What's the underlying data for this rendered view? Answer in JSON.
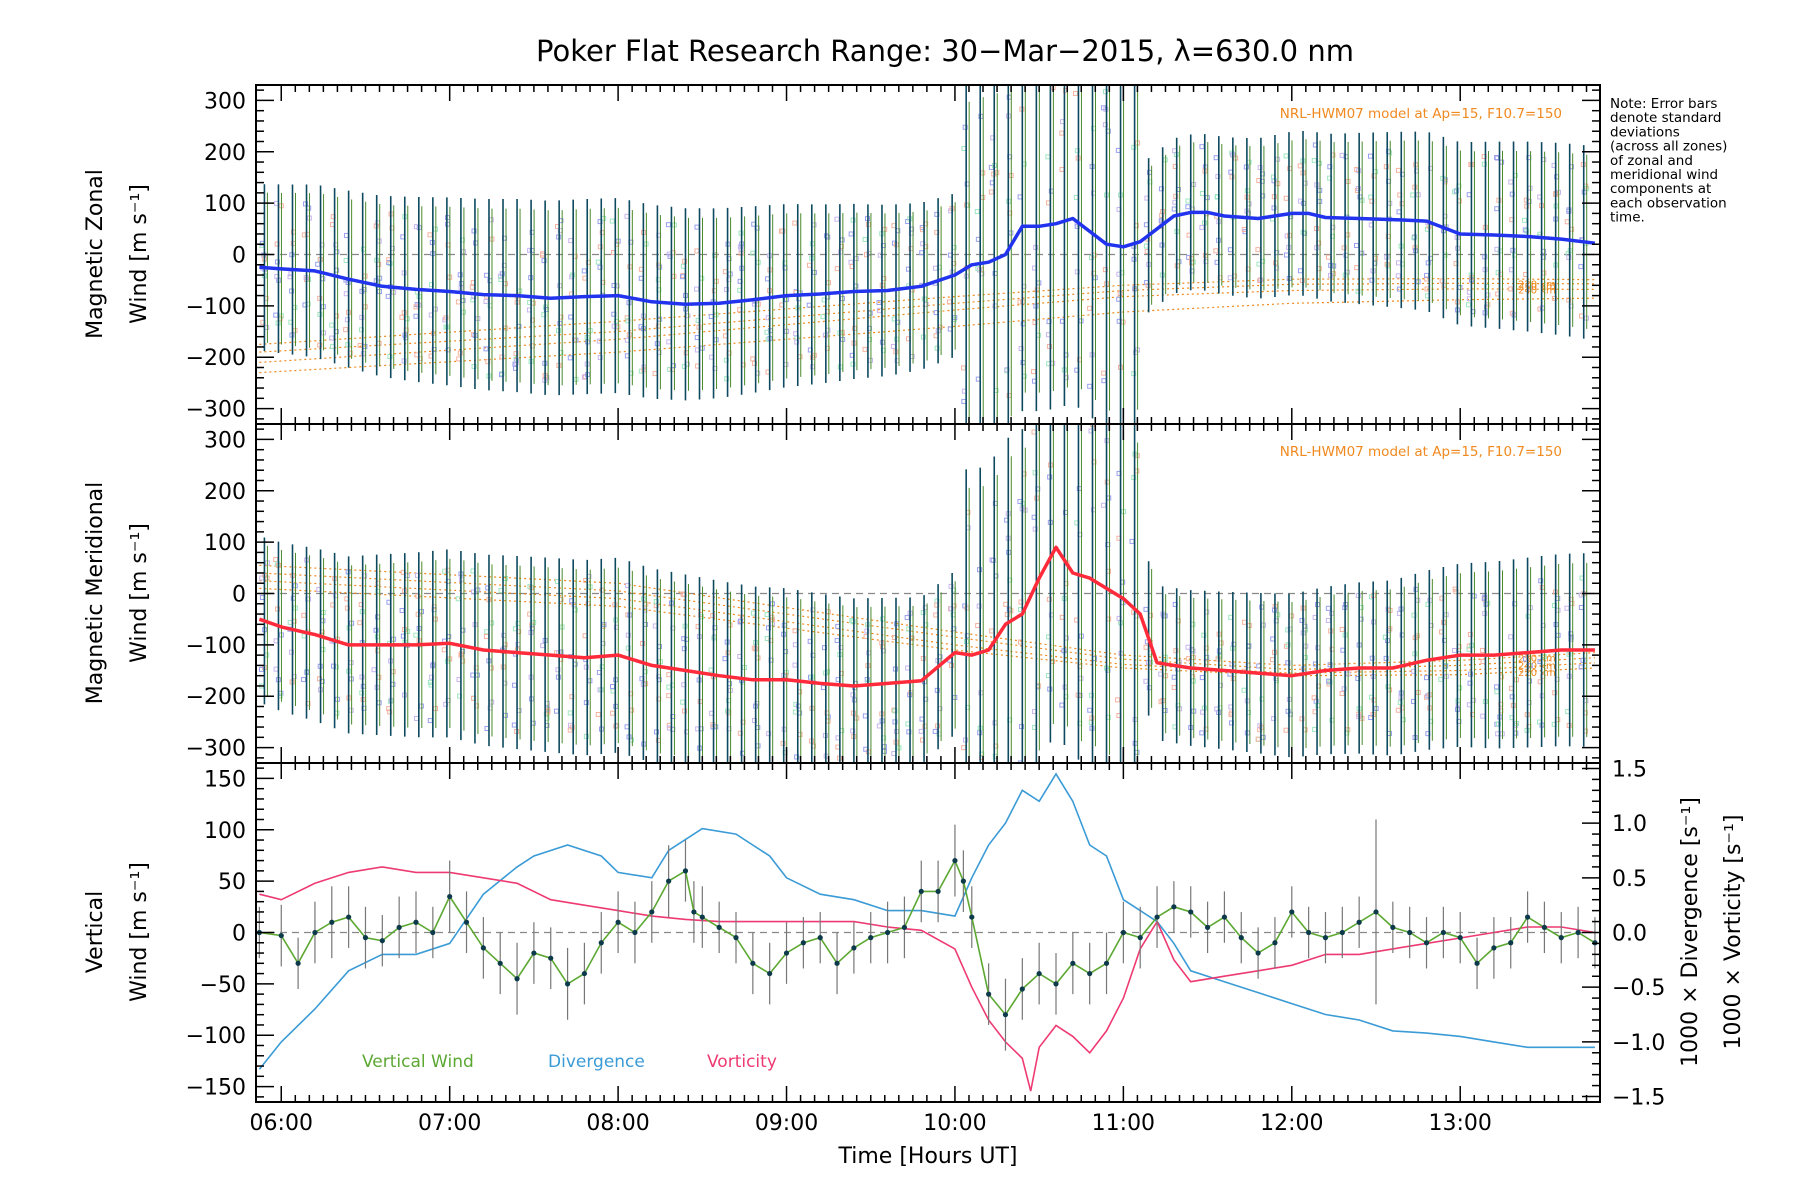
{
  "title": "Poker Flat Research Range: 30−Mar−2015, λ=630.0 nm",
  "note": [
    "Note: Error bars",
    "denote standard",
    "deviations",
    "(across all zones)",
    "of zonal and",
    "meridional wind",
    "components at",
    "each observation",
    "time."
  ],
  "colors": {
    "zonal": "#2233ee",
    "meridional": "#ff2a3a",
    "vertical": "#5ca832",
    "divergence": "#3a9bd6",
    "vorticity": "#ee3a72",
    "model": "#f08a20",
    "errorbar_dark": "#0d4a60",
    "errorbar_green": "#4a8a2a",
    "zero_line": "#888888"
  },
  "chart_data": [
    {
      "type": "line",
      "id": "zonal",
      "ylabel_line1": "Magnetic Zonal",
      "ylabel_line2": "Wind [m s⁻¹]",
      "ylim": [
        -330,
        330
      ],
      "yticks": [
        -300,
        -200,
        -100,
        0,
        100,
        200,
        300
      ],
      "model_label": "NRL-HWM07 model at Ap=15, F10.7=150",
      "model_alt_labels": [
        "240 km",
        "250 km",
        "220 km"
      ],
      "model_lines": [
        {
          "x": [
            5.87,
            8.0,
            10.0,
            11.0,
            12.0,
            13.0,
            13.8
          ],
          "y": [
            -230,
            -190,
            -140,
            -112,
            -95,
            -88,
            -85
          ]
        },
        {
          "x": [
            5.87,
            8.0,
            10.0,
            11.0,
            12.0,
            13.0,
            13.8
          ],
          "y": [
            -210,
            -165,
            -108,
            -82,
            -70,
            -67,
            -68
          ]
        },
        {
          "x": [
            5.87,
            8.0,
            10.0,
            11.0,
            12.0,
            13.0,
            13.8
          ],
          "y": [
            -190,
            -150,
            -95,
            -70,
            -58,
            -56,
            -57
          ]
        },
        {
          "x": [
            5.87,
            8.0,
            10.0,
            11.0,
            12.0,
            13.0,
            13.8
          ],
          "y": [
            -175,
            -130,
            -82,
            -60,
            -48,
            -47,
            -49
          ]
        }
      ],
      "series": [
        {
          "x": [
            5.87,
            6.0,
            6.2,
            6.4,
            6.6,
            6.8,
            7.0,
            7.2,
            7.4,
            7.6,
            7.8,
            8.0,
            8.2,
            8.4,
            8.6,
            8.8,
            9.0,
            9.2,
            9.4,
            9.6,
            9.8,
            10.0,
            10.1,
            10.2,
            10.3,
            10.4,
            10.5,
            10.6,
            10.7,
            10.8,
            10.9,
            11.0,
            11.1,
            11.2,
            11.3,
            11.4,
            11.5,
            11.6,
            11.8,
            12.0,
            12.1,
            12.2,
            12.4,
            12.6,
            12.8,
            13.0,
            13.2,
            13.4,
            13.6,
            13.8
          ],
          "y": [
            -25,
            -28,
            -32,
            -48,
            -62,
            -68,
            -72,
            -78,
            -80,
            -85,
            -82,
            -80,
            -92,
            -97,
            -95,
            -88,
            -80,
            -77,
            -72,
            -70,
            -62,
            -40,
            -20,
            -15,
            0,
            55,
            55,
            60,
            70,
            45,
            20,
            15,
            25,
            50,
            75,
            82,
            82,
            75,
            70,
            80,
            80,
            72,
            70,
            68,
            65,
            40,
            38,
            35,
            30,
            22
          ]
        }
      ]
    },
    {
      "type": "line",
      "id": "meridional",
      "ylabel_line1": "Magnetic Meridional",
      "ylabel_line2": "Wind [m s⁻¹]",
      "ylim": [
        -330,
        330
      ],
      "yticks": [
        -300,
        -200,
        -100,
        0,
        100,
        200,
        300
      ],
      "model_label": "NRL-HWM07 model at Ap=15, F10.7=150",
      "model_alt_labels": [
        "250 km",
        "240 km",
        "220 km"
      ],
      "model_lines": [
        {
          "x": [
            5.87,
            8.0,
            10.0,
            11.0,
            12.0,
            13.0,
            13.8
          ],
          "y": [
            55,
            20,
            -75,
            -120,
            -140,
            -130,
            -115
          ]
        },
        {
          "x": [
            5.87,
            8.0,
            10.0,
            11.0,
            12.0,
            13.0,
            13.8
          ],
          "y": [
            40,
            5,
            -85,
            -128,
            -148,
            -140,
            -125
          ]
        },
        {
          "x": [
            5.87,
            8.0,
            10.0,
            11.0,
            12.0,
            13.0,
            13.8
          ],
          "y": [
            25,
            -10,
            -100,
            -138,
            -155,
            -150,
            -135
          ]
        },
        {
          "x": [
            5.87,
            8.0,
            10.0,
            11.0,
            12.0,
            13.0,
            13.8
          ],
          "y": [
            10,
            -25,
            -110,
            -145,
            -160,
            -158,
            -145
          ]
        }
      ],
      "series": [
        {
          "x": [
            5.87,
            6.0,
            6.2,
            6.4,
            6.6,
            6.8,
            7.0,
            7.2,
            7.4,
            7.6,
            7.8,
            8.0,
            8.2,
            8.4,
            8.6,
            8.8,
            9.0,
            9.2,
            9.4,
            9.6,
            9.8,
            10.0,
            10.1,
            10.2,
            10.3,
            10.4,
            10.5,
            10.55,
            10.6,
            10.7,
            10.8,
            10.9,
            11.0,
            11.1,
            11.2,
            11.4,
            11.6,
            11.8,
            12.0,
            12.2,
            12.4,
            12.6,
            12.8,
            13.0,
            13.2,
            13.4,
            13.6,
            13.8
          ],
          "y": [
            -50,
            -65,
            -80,
            -100,
            -100,
            -100,
            -97,
            -110,
            -115,
            -120,
            -125,
            -120,
            -140,
            -150,
            -160,
            -168,
            -168,
            -175,
            -180,
            -175,
            -170,
            -115,
            -120,
            -110,
            -60,
            -40,
            30,
            60,
            90,
            40,
            30,
            10,
            -10,
            -40,
            -135,
            -145,
            -150,
            -155,
            -160,
            -150,
            -145,
            -145,
            -130,
            -120,
            -120,
            -115,
            -110,
            -110
          ]
        }
      ]
    },
    {
      "type": "line",
      "id": "vertical",
      "ylabel_line1": "Vertical",
      "ylabel_line2": "Wind [m s⁻¹]",
      "ylim": [
        -165,
        165
      ],
      "yticks": [
        -150,
        -100,
        -50,
        0,
        50,
        100,
        150
      ],
      "y2label": "1000 × Divergence [s⁻¹]",
      "y3label": "1000 × Vorticity [s⁻¹]",
      "y2lim": [
        -1.55,
        1.55
      ],
      "y2ticks": [
        -1.5,
        -1.0,
        -0.5,
        0.0,
        0.5,
        1.0,
        1.5
      ],
      "xlabel": "Time [Hours UT]",
      "xlim": [
        5.85,
        13.83
      ],
      "xticks": [
        6,
        7,
        8,
        9,
        10,
        11,
        12,
        13
      ],
      "xticklabels": [
        "06:00",
        "07:00",
        "08:00",
        "09:00",
        "10:00",
        "11:00",
        "12:00",
        "13:00"
      ],
      "legend": [
        "Vertical Wind",
        "Divergence",
        "Vorticity"
      ],
      "series": [
        {
          "name": "Vertical Wind",
          "x": [
            5.87,
            6.0,
            6.1,
            6.2,
            6.3,
            6.4,
            6.5,
            6.6,
            6.7,
            6.8,
            6.9,
            7.0,
            7.1,
            7.2,
            7.3,
            7.4,
            7.5,
            7.6,
            7.7,
            7.8,
            7.9,
            8.0,
            8.1,
            8.2,
            8.3,
            8.4,
            8.45,
            8.5,
            8.6,
            8.7,
            8.8,
            8.9,
            9.0,
            9.1,
            9.2,
            9.3,
            9.4,
            9.5,
            9.6,
            9.7,
            9.8,
            9.9,
            10.0,
            10.05,
            10.1,
            10.2,
            10.3,
            10.4,
            10.5,
            10.6,
            10.7,
            10.8,
            10.9,
            11.0,
            11.1,
            11.2,
            11.3,
            11.4,
            11.5,
            11.6,
            11.7,
            11.8,
            11.9,
            12.0,
            12.1,
            12.2,
            12.3,
            12.4,
            12.5,
            12.6,
            12.7,
            12.8,
            12.9,
            13.0,
            13.1,
            13.2,
            13.3,
            13.4,
            13.5,
            13.6,
            13.7,
            13.8
          ],
          "y": [
            0,
            -3,
            -30,
            0,
            10,
            15,
            -5,
            -8,
            5,
            10,
            0,
            35,
            10,
            -15,
            -30,
            -45,
            -20,
            -25,
            -50,
            -40,
            -10,
            10,
            0,
            20,
            50,
            60,
            20,
            15,
            5,
            -5,
            -30,
            -40,
            -20,
            -10,
            -5,
            -30,
            -15,
            -5,
            0,
            5,
            40,
            40,
            70,
            50,
            15,
            -60,
            -80,
            -55,
            -40,
            -50,
            -30,
            -40,
            -30,
            0,
            -5,
            15,
            25,
            20,
            5,
            15,
            -5,
            -20,
            -10,
            20,
            0,
            -5,
            0,
            10,
            20,
            5,
            0,
            -10,
            0,
            -5,
            -30,
            -15,
            -10,
            15,
            5,
            -5,
            0,
            -10
          ],
          "err": [
            25,
            30,
            25,
            30,
            35,
            30,
            30,
            25,
            30,
            30,
            25,
            35,
            30,
            30,
            30,
            35,
            30,
            30,
            35,
            30,
            30,
            30,
            30,
            30,
            35,
            30,
            30,
            30,
            25,
            25,
            30,
            30,
            30,
            25,
            25,
            30,
            25,
            25,
            30,
            30,
            30,
            30,
            35,
            30,
            30,
            30,
            35,
            30,
            30,
            30,
            30,
            30,
            30,
            30,
            30,
            30,
            25,
            25,
            25,
            25,
            25,
            25,
            25,
            25,
            25,
            25,
            25,
            25,
            90,
            25,
            25,
            25,
            25,
            25,
            25,
            30,
            25,
            25,
            25,
            25,
            25,
            25
          ]
        },
        {
          "name": "Divergence",
          "axis": "y2",
          "x": [
            5.87,
            6.0,
            6.2,
            6.4,
            6.6,
            6.8,
            7.0,
            7.2,
            7.4,
            7.5,
            7.7,
            7.9,
            8.0,
            8.2,
            8.3,
            8.5,
            8.7,
            8.9,
            9.0,
            9.2,
            9.4,
            9.6,
            9.8,
            10.0,
            10.1,
            10.2,
            10.3,
            10.4,
            10.5,
            10.6,
            10.7,
            10.8,
            10.9,
            11.0,
            11.1,
            11.2,
            11.3,
            11.4,
            11.6,
            11.8,
            12.0,
            12.2,
            12.4,
            12.6,
            12.8,
            13.0,
            13.2,
            13.4,
            13.6,
            13.8
          ],
          "y": [
            -1.25,
            -1.0,
            -0.7,
            -0.35,
            -0.2,
            -0.2,
            -0.1,
            0.35,
            0.6,
            0.7,
            0.8,
            0.7,
            0.55,
            0.5,
            0.75,
            0.95,
            0.9,
            0.7,
            0.5,
            0.35,
            0.3,
            0.2,
            0.2,
            0.15,
            0.5,
            0.8,
            1.0,
            1.3,
            1.2,
            1.45,
            1.2,
            0.8,
            0.7,
            0.3,
            0.2,
            0.1,
            -0.1,
            -0.35,
            -0.45,
            -0.55,
            -0.65,
            -0.75,
            -0.8,
            -0.9,
            -0.92,
            -0.95,
            -1.0,
            -1.05,
            -1.05,
            -1.05
          ]
        },
        {
          "name": "Vorticity",
          "axis": "y2",
          "x": [
            5.87,
            6.0,
            6.2,
            6.4,
            6.6,
            6.8,
            7.0,
            7.2,
            7.4,
            7.6,
            7.8,
            8.0,
            8.2,
            8.4,
            8.6,
            8.8,
            9.0,
            9.2,
            9.4,
            9.6,
            9.8,
            10.0,
            10.1,
            10.2,
            10.3,
            10.4,
            10.45,
            10.5,
            10.6,
            10.7,
            10.8,
            10.9,
            11.0,
            11.1,
            11.2,
            11.3,
            11.4,
            11.6,
            11.8,
            12.0,
            12.2,
            12.4,
            12.6,
            12.8,
            13.0,
            13.2,
            13.4,
            13.6,
            13.8
          ],
          "y": [
            0.35,
            0.3,
            0.45,
            0.55,
            0.6,
            0.55,
            0.55,
            0.5,
            0.45,
            0.3,
            0.25,
            0.2,
            0.15,
            0.12,
            0.1,
            0.1,
            0.1,
            0.1,
            0.1,
            0.05,
            0.02,
            -0.15,
            -0.5,
            -0.8,
            -1.0,
            -1.15,
            -1.45,
            -1.05,
            -0.85,
            -0.95,
            -1.1,
            -0.9,
            -0.6,
            -0.15,
            0.1,
            -0.25,
            -0.45,
            -0.4,
            -0.35,
            -0.3,
            -0.2,
            -0.2,
            -0.15,
            -0.1,
            -0.05,
            0.0,
            0.05,
            0.05,
            0.0
          ]
        }
      ]
    }
  ]
}
